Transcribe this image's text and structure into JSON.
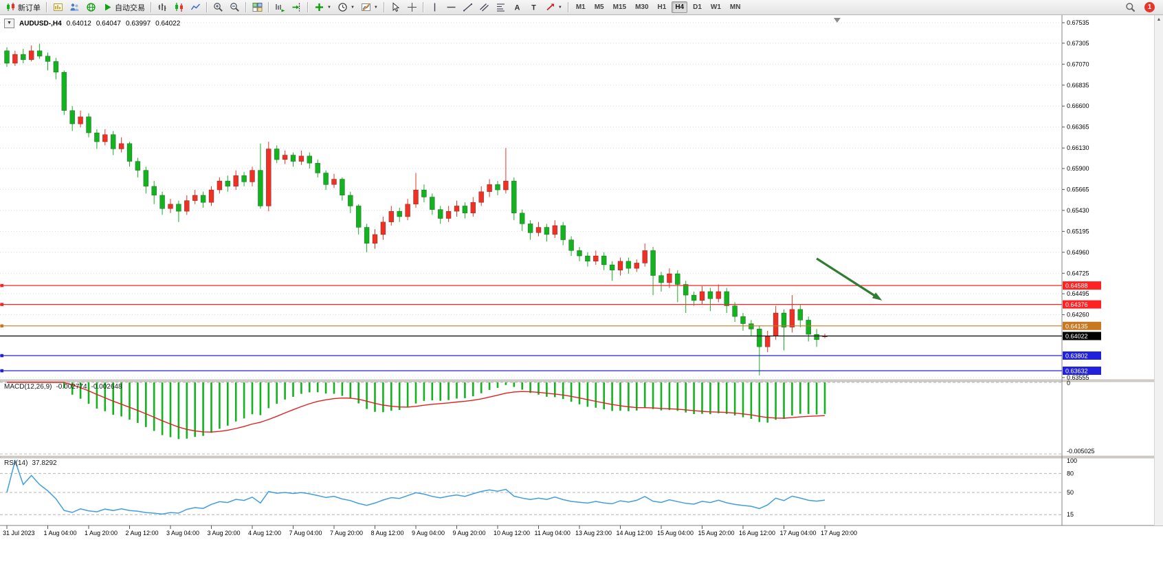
{
  "toolbar": {
    "items": [
      {
        "type": "button",
        "name": "new-order-button",
        "icon": "new-order",
        "label": "新订单"
      },
      {
        "type": "sep"
      },
      {
        "type": "icon",
        "name": "new-chart-button",
        "icon": "new-chart"
      },
      {
        "type": "icon",
        "name": "profiles-button",
        "icon": "profiles"
      },
      {
        "type": "icon",
        "name": "community-button",
        "icon": "community"
      },
      {
        "type": "button",
        "name": "autotrading-button",
        "icon": "play",
        "label": "自动交易"
      },
      {
        "type": "sep"
      },
      {
        "type": "icon",
        "name": "bar-chart-button",
        "icon": "bars"
      },
      {
        "type": "icon",
        "name": "candle-chart-button",
        "icon": "candles"
      },
      {
        "type": "icon",
        "name": "line-chart-button",
        "icon": "line-chart"
      },
      {
        "type": "sep"
      },
      {
        "type": "icon",
        "name": "zoom-in-button",
        "icon": "zoom-in"
      },
      {
        "type": "icon",
        "name": "zoom-out-button",
        "icon": "zoom-out"
      },
      {
        "type": "sep"
      },
      {
        "type": "icon",
        "name": "tile-windows-button",
        "icon": "tiles"
      },
      {
        "type": "sep"
      },
      {
        "type": "icon",
        "name": "auto-scroll-button",
        "icon": "auto-scroll"
      },
      {
        "type": "icon",
        "name": "chart-shift-button",
        "icon": "chart-shift"
      },
      {
        "type": "sep"
      },
      {
        "type": "icon",
        "name": "indicators-button",
        "icon": "indicators",
        "caret": true
      },
      {
        "type": "icon",
        "name": "periods-button",
        "icon": "periods",
        "caret": true
      },
      {
        "type": "icon",
        "name": "templates-button",
        "icon": "templates",
        "caret": true
      },
      {
        "type": "sep"
      },
      {
        "type": "icon",
        "name": "cursor-button",
        "icon": "cursor"
      },
      {
        "type": "icon",
        "name": "crosshair-button",
        "icon": "crosshair"
      },
      {
        "type": "sep"
      },
      {
        "type": "icon",
        "name": "vertical-line-button",
        "icon": "vline"
      },
      {
        "type": "icon",
        "name": "horizontal-line-button",
        "icon": "hline"
      },
      {
        "type": "icon",
        "name": "trendline-button",
        "icon": "trendline"
      },
      {
        "type": "icon",
        "name": "channel-button",
        "icon": "channel"
      },
      {
        "type": "icon",
        "name": "fibonacci-button",
        "icon": "fibonacci"
      },
      {
        "type": "icon",
        "name": "text-button",
        "icon": "text"
      },
      {
        "type": "icon",
        "name": "label-button",
        "icon": "label"
      },
      {
        "type": "icon",
        "name": "arrows-button",
        "icon": "arrows",
        "caret": true
      },
      {
        "type": "sep"
      }
    ],
    "timeframes": [
      "M1",
      "M5",
      "M15",
      "M30",
      "H1",
      "H4",
      "D1",
      "W1",
      "MN"
    ],
    "active_timeframe": "H4",
    "badge": "1"
  },
  "symbol_header": {
    "dropdown_glyph": "▼",
    "name": "AUDUSD-,H4",
    "open": "0.64012",
    "high": "0.64047",
    "low": "0.63997",
    "close": "0.64022"
  },
  "price_axis": {
    "ticks": [
      "0.67535",
      "0.67305",
      "0.67070",
      "0.66835",
      "0.66600",
      "0.66365",
      "0.66130",
      "0.65900",
      "0.65665",
      "0.65430",
      "0.65195",
      "0.64960",
      "0.64725",
      "0.64495",
      "0.64260",
      "0.63555"
    ]
  },
  "hlines": [
    {
      "label": "0.64588",
      "price": 0.64588,
      "color": "#ff2222",
      "handle": true
    },
    {
      "label": "0.64376",
      "price": 0.64376,
      "color": "#ff2222",
      "handle": true
    },
    {
      "label": "0.64135",
      "price": 0.64135,
      "color": "#c87820",
      "handle": true
    },
    {
      "label": "0.64022",
      "price": 0.64022,
      "color": "#000000",
      "handle": false
    },
    {
      "label": "0.63802",
      "price": 0.63802,
      "color": "#2222dd",
      "handle": true
    },
    {
      "label": "0.63632",
      "price": 0.63632,
      "color": "#2222dd",
      "handle": true
    }
  ],
  "indicators": {
    "macd": {
      "title": "MACD(12,26,9)",
      "value_main": "-0.002774",
      "value_signal": "-0.002648",
      "axis_top": "0",
      "axis_bottom": "-0.005025",
      "fast": 12,
      "slow": 26,
      "signal": 9
    },
    "rsi": {
      "title": "RSI(14)",
      "value": "37.8292",
      "period": 14,
      "levels": [
        100,
        80,
        50,
        15
      ]
    }
  },
  "chart_data": {
    "type": "candlestick",
    "symbol": "AUDUSD",
    "timeframe": "H4",
    "price_range": {
      "top": 0.67535,
      "bottom": 0.63555
    },
    "candles_per_label": 5,
    "shift_marker_index": 101.5,
    "time_labels": [
      "31 Jul 2023",
      "1 Aug 04:00",
      "1 Aug 20:00",
      "2 Aug 12:00",
      "3 Aug 04:00",
      "3 Aug 20:00",
      "4 Aug 12:00",
      "7 Aug 04:00",
      "7 Aug 20:00",
      "8 Aug 12:00",
      "9 Aug 04:00",
      "9 Aug 20:00",
      "10 Aug 12:00",
      "11 Aug 04:00",
      "13 Aug 23:00",
      "14 Aug 12:00",
      "15 Aug 04:00",
      "15 Aug 20:00",
      "16 Aug 12:00",
      "17 Aug 04:00",
      "17 Aug 20:00"
    ],
    "ohlc": [
      [
        0.6722,
        0.6726,
        0.6704,
        0.6708
      ],
      [
        0.6708,
        0.6722,
        0.6705,
        0.6718
      ],
      [
        0.6718,
        0.6724,
        0.6708,
        0.6712
      ],
      [
        0.6712,
        0.6728,
        0.671,
        0.6722
      ],
      [
        0.6722,
        0.673,
        0.6713,
        0.6716
      ],
      [
        0.6716,
        0.672,
        0.67,
        0.671
      ],
      [
        0.671,
        0.6714,
        0.669,
        0.6698
      ],
      [
        0.6698,
        0.67,
        0.665,
        0.6655
      ],
      [
        0.6655,
        0.666,
        0.6632,
        0.664
      ],
      [
        0.664,
        0.6655,
        0.6636,
        0.6648
      ],
      [
        0.6648,
        0.6652,
        0.6625,
        0.663
      ],
      [
        0.663,
        0.6634,
        0.6612,
        0.662
      ],
      [
        0.662,
        0.6634,
        0.6616,
        0.6628
      ],
      [
        0.6628,
        0.6632,
        0.6605,
        0.6612
      ],
      [
        0.6612,
        0.6625,
        0.6608,
        0.6618
      ],
      [
        0.6618,
        0.662,
        0.6592,
        0.6598
      ],
      [
        0.6598,
        0.6602,
        0.658,
        0.6588
      ],
      [
        0.6588,
        0.6592,
        0.6562,
        0.657
      ],
      [
        0.657,
        0.6576,
        0.655,
        0.656
      ],
      [
        0.656,
        0.6564,
        0.6538,
        0.6545
      ],
      [
        0.6545,
        0.6556,
        0.654,
        0.655
      ],
      [
        0.655,
        0.6554,
        0.653,
        0.6542
      ],
      [
        0.6542,
        0.656,
        0.6538,
        0.6554
      ],
      [
        0.6554,
        0.6566,
        0.655,
        0.656
      ],
      [
        0.656,
        0.6564,
        0.6546,
        0.6552
      ],
      [
        0.6552,
        0.657,
        0.6548,
        0.6566
      ],
      [
        0.6566,
        0.658,
        0.6562,
        0.6576
      ],
      [
        0.6576,
        0.6582,
        0.6564,
        0.657
      ],
      [
        0.657,
        0.6588,
        0.6566,
        0.6582
      ],
      [
        0.6582,
        0.6586,
        0.657,
        0.6575
      ],
      [
        0.6575,
        0.6592,
        0.657,
        0.6588
      ],
      [
        0.6588,
        0.6618,
        0.6545,
        0.6548
      ],
      [
        0.6548,
        0.662,
        0.6542,
        0.6612
      ],
      [
        0.6612,
        0.6616,
        0.6596,
        0.66
      ],
      [
        0.66,
        0.661,
        0.6595,
        0.6605
      ],
      [
        0.6605,
        0.6608,
        0.6592,
        0.6598
      ],
      [
        0.6598,
        0.661,
        0.6594,
        0.6604
      ],
      [
        0.6604,
        0.6608,
        0.659,
        0.6596
      ],
      [
        0.6596,
        0.66,
        0.658,
        0.6585
      ],
      [
        0.6585,
        0.6588,
        0.6566,
        0.6572
      ],
      [
        0.6572,
        0.6584,
        0.6568,
        0.6578
      ],
      [
        0.6578,
        0.658,
        0.6554,
        0.656
      ],
      [
        0.656,
        0.6564,
        0.654,
        0.6548
      ],
      [
        0.6548,
        0.655,
        0.6516,
        0.6524
      ],
      [
        0.6524,
        0.6528,
        0.6496,
        0.6506
      ],
      [
        0.6506,
        0.6522,
        0.65,
        0.6516
      ],
      [
        0.6516,
        0.6536,
        0.651,
        0.653
      ],
      [
        0.653,
        0.6548,
        0.6526,
        0.6542
      ],
      [
        0.6542,
        0.6546,
        0.653,
        0.6536
      ],
      [
        0.6536,
        0.6556,
        0.6532,
        0.655
      ],
      [
        0.655,
        0.6585,
        0.6546,
        0.6566
      ],
      [
        0.6566,
        0.6572,
        0.6552,
        0.6558
      ],
      [
        0.6558,
        0.6562,
        0.6538,
        0.6544
      ],
      [
        0.6544,
        0.6548,
        0.6528,
        0.6534
      ],
      [
        0.6534,
        0.6548,
        0.653,
        0.6542
      ],
      [
        0.6542,
        0.6554,
        0.6536,
        0.6548
      ],
      [
        0.6548,
        0.6552,
        0.6534,
        0.654
      ],
      [
        0.654,
        0.6558,
        0.6536,
        0.6552
      ],
      [
        0.6552,
        0.657,
        0.6548,
        0.6564
      ],
      [
        0.6564,
        0.6578,
        0.6558,
        0.6572
      ],
      [
        0.6572,
        0.6576,
        0.656,
        0.6566
      ],
      [
        0.6566,
        0.6613,
        0.6562,
        0.6576
      ],
      [
        0.6576,
        0.658,
        0.6532,
        0.654
      ],
      [
        0.654,
        0.6544,
        0.652,
        0.6528
      ],
      [
        0.6528,
        0.6532,
        0.651,
        0.6518
      ],
      [
        0.6518,
        0.653,
        0.6514,
        0.6524
      ],
      [
        0.6524,
        0.6528,
        0.6508,
        0.6516
      ],
      [
        0.6516,
        0.6532,
        0.6512,
        0.6526
      ],
      [
        0.6526,
        0.653,
        0.6504,
        0.651
      ],
      [
        0.651,
        0.6514,
        0.6492,
        0.6498
      ],
      [
        0.6498,
        0.6502,
        0.6486,
        0.6492
      ],
      [
        0.6492,
        0.6496,
        0.648,
        0.6486
      ],
      [
        0.6486,
        0.6498,
        0.6482,
        0.6492
      ],
      [
        0.6492,
        0.6496,
        0.6476,
        0.6482
      ],
      [
        0.6482,
        0.6486,
        0.6464,
        0.6476
      ],
      [
        0.6476,
        0.649,
        0.647,
        0.6486
      ],
      [
        0.6486,
        0.649,
        0.6472,
        0.6478
      ],
      [
        0.6478,
        0.6488,
        0.6474,
        0.6484
      ],
      [
        0.6484,
        0.6506,
        0.648,
        0.6498
      ],
      [
        0.6498,
        0.6502,
        0.6448,
        0.647
      ],
      [
        0.647,
        0.6474,
        0.6452,
        0.6462
      ],
      [
        0.6462,
        0.6478,
        0.6456,
        0.6472
      ],
      [
        0.6472,
        0.6476,
        0.644,
        0.646
      ],
      [
        0.646,
        0.6464,
        0.6428,
        0.6448
      ],
      [
        0.6448,
        0.6452,
        0.6436,
        0.6442
      ],
      [
        0.6442,
        0.6458,
        0.6438,
        0.6452
      ],
      [
        0.6452,
        0.6456,
        0.643,
        0.6444
      ],
      [
        0.6444,
        0.646,
        0.644,
        0.6452
      ],
      [
        0.6452,
        0.6456,
        0.6428,
        0.6436
      ],
      [
        0.6436,
        0.644,
        0.6418,
        0.6424
      ],
      [
        0.6424,
        0.6428,
        0.6408,
        0.6416
      ],
      [
        0.6416,
        0.642,
        0.6402,
        0.641
      ],
      [
        0.641,
        0.6414,
        0.6358,
        0.639
      ],
      [
        0.639,
        0.6408,
        0.6384,
        0.6402
      ],
      [
        0.6402,
        0.6436,
        0.6398,
        0.6428
      ],
      [
        0.6428,
        0.6432,
        0.6386,
        0.6412
      ],
      [
        0.6412,
        0.6448,
        0.6406,
        0.6432
      ],
      [
        0.6432,
        0.6438,
        0.6412,
        0.642
      ],
      [
        0.642,
        0.6424,
        0.6396,
        0.6404
      ],
      [
        0.6404,
        0.641,
        0.639,
        0.6398
      ],
      [
        0.64012,
        0.64047,
        0.63997,
        0.64022
      ]
    ]
  },
  "annotations": {
    "trend_arrow": {
      "from_index": 99,
      "from_price": 0.6489,
      "to_index": 107,
      "to_price": 0.6442,
      "color": "#2e7d32"
    }
  },
  "colors": {
    "candle_up": "#ee3124",
    "candle_down": "#12b31e",
    "macd_histogram": "#12b31e",
    "macd_signal": "#e02020",
    "rsi_line": "#3f9ede",
    "grid": "#dadada"
  }
}
